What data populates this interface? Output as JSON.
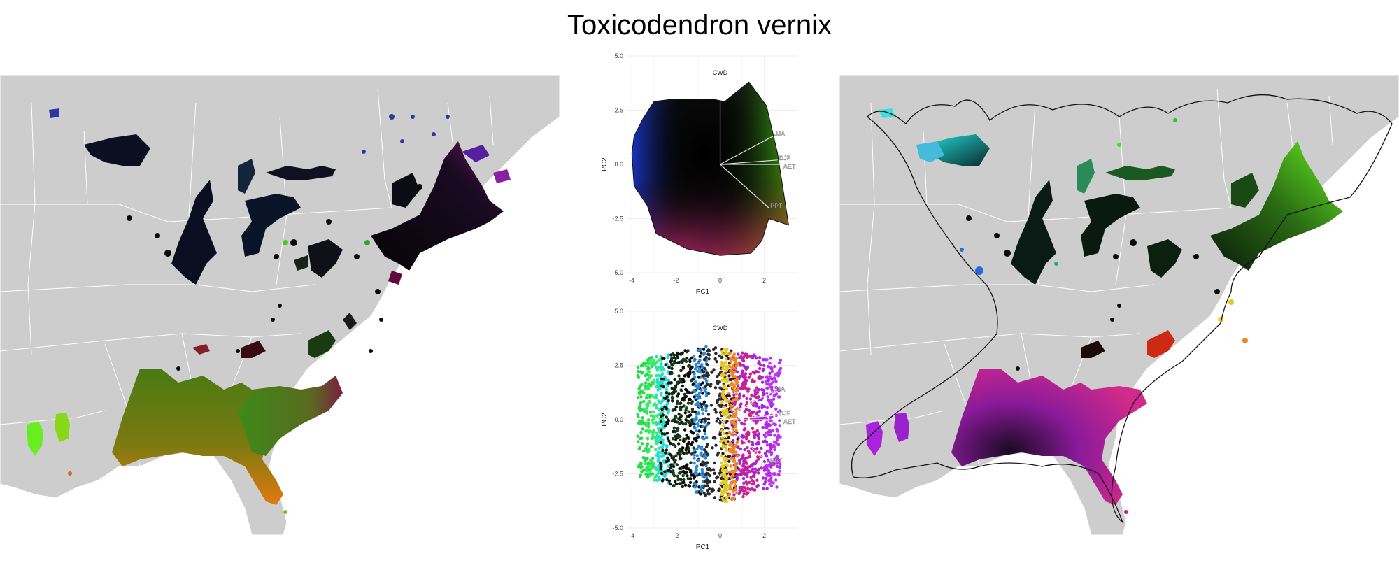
{
  "figure": {
    "title": "Toxicodendron vernix"
  },
  "colors": {
    "land": "#cdcdcd",
    "border": "#ffffff",
    "hull": "#111111",
    "grid": "#ececec",
    "panel_bg": "#ffffff"
  },
  "chart_data": [
    {
      "type": "map",
      "name": "range-map-left",
      "legend": "none"
    },
    {
      "type": "scatter",
      "name": "pca-top",
      "xlabel": "PC1",
      "ylabel": "PC2",
      "xlim": [
        -4.2,
        3.5
      ],
      "ylim": [
        -5,
        5
      ],
      "x_ticks": [
        -4,
        -2,
        0,
        2
      ],
      "x_tick_labels": [
        "-4",
        "-2",
        "0",
        "2"
      ],
      "y_ticks": [
        5,
        2.5,
        0,
        -2.5,
        -5
      ],
      "y_tick_labels": [
        "5.0",
        "2.5",
        "0.0",
        "-2.5",
        "-5.0"
      ],
      "grid": true,
      "loadings": [
        {
          "label": "CWD",
          "x": 0.0,
          "y": 4.0
        },
        {
          "label": "JJA",
          "x": 2.4,
          "y": 1.3
        },
        {
          "label": "DJF",
          "x": 2.6,
          "y": 0.2
        },
        {
          "label": "AET",
          "x": 2.8,
          "y": 0.0
        },
        {
          "label": "PPT",
          "x": 2.2,
          "y": -2.0
        }
      ]
    },
    {
      "type": "scatter",
      "name": "pca-bottom",
      "xlabel": "PC1",
      "ylabel": "PC2",
      "xlim": [
        -4.2,
        3.5
      ],
      "ylim": [
        -5,
        5
      ],
      "x_ticks": [
        -4,
        -2,
        0,
        2
      ],
      "x_tick_labels": [
        "-4",
        "-2",
        "0",
        "2"
      ],
      "y_ticks": [
        5,
        2.5,
        0,
        -2.5,
        -5
      ],
      "y_tick_labels": [
        "5.0",
        "2.5",
        "0.0",
        "-2.5",
        "-5.0"
      ],
      "grid": true,
      "loadings": [
        {
          "label": "CWD",
          "x": 0.0,
          "y": 4.0
        },
        {
          "label": "JJA",
          "x": 2.4,
          "y": 1.3
        },
        {
          "label": "DJF",
          "x": 2.6,
          "y": 0.2
        },
        {
          "label": "AET",
          "x": 2.8,
          "y": 0.0
        },
        {
          "label": "PPT",
          "x": 2.2,
          "y": -2.0
        }
      ]
    },
    {
      "type": "map",
      "name": "range-map-right",
      "legend": "none"
    }
  ]
}
